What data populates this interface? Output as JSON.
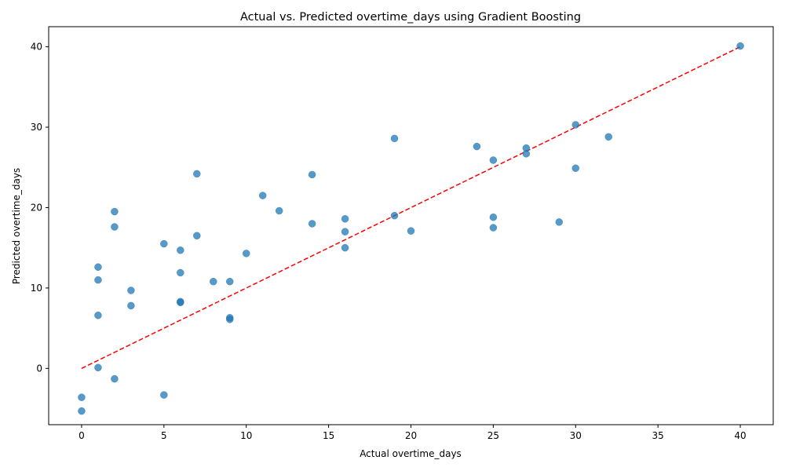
{
  "chart_data": {
    "type": "scatter",
    "title": "Actual vs. Predicted overtime_days using Gradient Boosting",
    "xlabel": "Actual overtime_days",
    "ylabel": "Predicted overtime_days",
    "xlim": [
      -2,
      42
    ],
    "ylim": [
      -7,
      42.5
    ],
    "xticks": [
      0,
      5,
      10,
      15,
      20,
      25,
      30,
      35,
      40
    ],
    "yticks": [
      0,
      10,
      20,
      30,
      40
    ],
    "grid": false,
    "point_color": "#1f77b4",
    "point_opacity": 0.75,
    "reference_line": {
      "from": [
        0,
        0
      ],
      "to": [
        40,
        40
      ],
      "color": "#ff0000",
      "style": "dashed"
    },
    "points": [
      {
        "x": 0,
        "y": -3.6
      },
      {
        "x": 0,
        "y": -5.3
      },
      {
        "x": 1,
        "y": 12.6
      },
      {
        "x": 1,
        "y": 11.0
      },
      {
        "x": 1,
        "y": 6.6
      },
      {
        "x": 1,
        "y": 0.1
      },
      {
        "x": 2,
        "y": 19.5
      },
      {
        "x": 2,
        "y": 17.6
      },
      {
        "x": 2,
        "y": -1.3
      },
      {
        "x": 3,
        "y": 9.7
      },
      {
        "x": 3,
        "y": 7.8
      },
      {
        "x": 5,
        "y": 15.5
      },
      {
        "x": 5,
        "y": -3.3
      },
      {
        "x": 6,
        "y": 14.7
      },
      {
        "x": 6,
        "y": 11.9
      },
      {
        "x": 6,
        "y": 8.3
      },
      {
        "x": 6,
        "y": 8.2
      },
      {
        "x": 7,
        "y": 24.2
      },
      {
        "x": 7,
        "y": 16.5
      },
      {
        "x": 8,
        "y": 10.8
      },
      {
        "x": 9,
        "y": 10.8
      },
      {
        "x": 9,
        "y": 6.3
      },
      {
        "x": 9,
        "y": 6.1
      },
      {
        "x": 10,
        "y": 14.3
      },
      {
        "x": 11,
        "y": 21.5
      },
      {
        "x": 12,
        "y": 19.6
      },
      {
        "x": 14,
        "y": 24.1
      },
      {
        "x": 14,
        "y": 18.0
      },
      {
        "x": 16,
        "y": 18.6
      },
      {
        "x": 16,
        "y": 17.0
      },
      {
        "x": 16,
        "y": 15.0
      },
      {
        "x": 19,
        "y": 28.6
      },
      {
        "x": 19,
        "y": 19.0
      },
      {
        "x": 20,
        "y": 17.1
      },
      {
        "x": 24,
        "y": 27.6
      },
      {
        "x": 25,
        "y": 25.9
      },
      {
        "x": 25,
        "y": 18.8
      },
      {
        "x": 25,
        "y": 17.5
      },
      {
        "x": 27,
        "y": 27.4
      },
      {
        "x": 27,
        "y": 26.7
      },
      {
        "x": 29,
        "y": 18.2
      },
      {
        "x": 30,
        "y": 30.3
      },
      {
        "x": 30,
        "y": 24.9
      },
      {
        "x": 32,
        "y": 28.8
      },
      {
        "x": 40,
        "y": 40.1
      }
    ]
  }
}
